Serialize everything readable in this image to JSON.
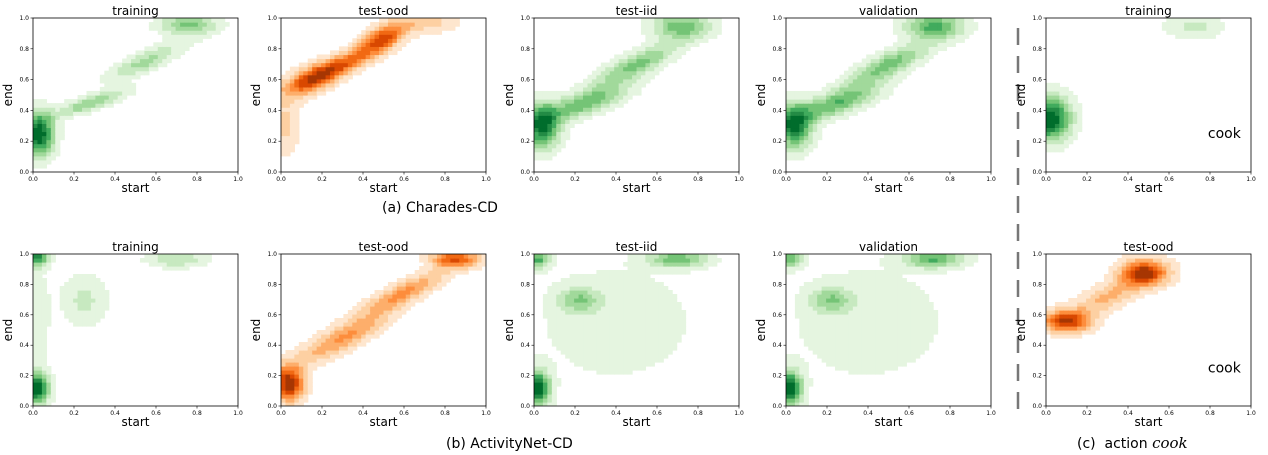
{
  "captions": {
    "a": "(a) Charades-CD",
    "b": "(b) ActivityNet-CD",
    "c_prefix": "(c)  action ",
    "c_action": "cook"
  },
  "colors": {
    "green_scale": [
      "#e5f5e0",
      "#c7e9c0",
      "#a1d99b",
      "#74c476",
      "#41ab5d",
      "#238b45",
      "#006d2c"
    ],
    "orange_scale": [
      "#fee6ce",
      "#fdd0a2",
      "#fdae6b",
      "#fd8d3c",
      "#f16913",
      "#d94801",
      "#a63603"
    ],
    "divider": "#777777"
  },
  "chart_data": [
    {
      "id": "a1",
      "type": "heatmap",
      "panel": "Charades-CD",
      "title": "training",
      "xlabel": "start",
      "ylabel": "end",
      "xlim": [
        0,
        1
      ],
      "ylim": [
        0,
        1
      ],
      "ticks": [
        "0.0",
        "0.2",
        "0.4",
        "0.6",
        "0.8",
        "1.0"
      ],
      "colormap": "green",
      "blobs": [
        {
          "x": 0.03,
          "y": 0.25,
          "sx": 0.05,
          "sy": 0.1,
          "w": 1.0
        },
        {
          "x": 0.28,
          "y": 0.45,
          "sx": 0.12,
          "sy": 0.06,
          "w": 0.45,
          "rho": 0.8
        },
        {
          "x": 0.55,
          "y": 0.72,
          "sx": 0.12,
          "sy": 0.08,
          "w": 0.4,
          "rho": 0.8
        },
        {
          "x": 0.76,
          "y": 0.96,
          "sx": 0.1,
          "sy": 0.05,
          "w": 0.5
        }
      ]
    },
    {
      "id": "a2",
      "type": "heatmap",
      "panel": "Charades-CD",
      "title": "test-ood",
      "xlabel": "start",
      "ylabel": "end",
      "xlim": [
        0,
        1
      ],
      "ylim": [
        0,
        1
      ],
      "ticks": [
        "0.0",
        "0.2",
        "0.4",
        "0.6",
        "0.8",
        "1.0"
      ],
      "colormap": "orange",
      "blobs": [
        {
          "x": 0.15,
          "y": 0.6,
          "sx": 0.1,
          "sy": 0.08,
          "w": 0.85,
          "rho": 0.6
        },
        {
          "x": 0.3,
          "y": 0.7,
          "sx": 0.14,
          "sy": 0.09,
          "w": 0.8,
          "rho": 0.85
        },
        {
          "x": 0.5,
          "y": 0.88,
          "sx": 0.08,
          "sy": 0.07,
          "w": 1.0,
          "rho": 0.6
        },
        {
          "x": 0.02,
          "y": 0.3,
          "sx": 0.05,
          "sy": 0.12,
          "w": 0.35
        },
        {
          "x": 0.72,
          "y": 0.98,
          "sx": 0.1,
          "sy": 0.05,
          "w": 0.35
        }
      ]
    },
    {
      "id": "a3",
      "type": "heatmap",
      "panel": "Charades-CD",
      "title": "test-iid",
      "xlabel": "start",
      "ylabel": "end",
      "xlim": [
        0,
        1
      ],
      "ylim": [
        0,
        1
      ],
      "ticks": [
        "0.0",
        "0.2",
        "0.4",
        "0.6",
        "0.8",
        "1.0"
      ],
      "colormap": "green",
      "blobs": [
        {
          "x": 0.04,
          "y": 0.3,
          "sx": 0.06,
          "sy": 0.1,
          "w": 0.95
        },
        {
          "x": 0.25,
          "y": 0.45,
          "sx": 0.14,
          "sy": 0.08,
          "w": 0.6,
          "rho": 0.7
        },
        {
          "x": 0.5,
          "y": 0.7,
          "sx": 0.14,
          "sy": 0.1,
          "w": 0.55,
          "rho": 0.8
        },
        {
          "x": 0.72,
          "y": 0.95,
          "sx": 0.1,
          "sy": 0.06,
          "w": 0.6
        }
      ]
    },
    {
      "id": "a4",
      "type": "heatmap",
      "panel": "Charades-CD",
      "title": "validation",
      "xlabel": "start",
      "ylabel": "end",
      "xlim": [
        0,
        1
      ],
      "ylim": [
        0,
        1
      ],
      "ticks": [
        "0.0",
        "0.2",
        "0.4",
        "0.6",
        "0.8",
        "1.0"
      ],
      "colormap": "green",
      "blobs": [
        {
          "x": 0.04,
          "y": 0.3,
          "sx": 0.06,
          "sy": 0.1,
          "w": 0.9
        },
        {
          "x": 0.25,
          "y": 0.45,
          "sx": 0.14,
          "sy": 0.08,
          "w": 0.6,
          "rho": 0.7
        },
        {
          "x": 0.5,
          "y": 0.7,
          "sx": 0.14,
          "sy": 0.1,
          "w": 0.55,
          "rho": 0.8
        },
        {
          "x": 0.72,
          "y": 0.95,
          "sx": 0.1,
          "sy": 0.06,
          "w": 0.65
        }
      ]
    },
    {
      "id": "b1",
      "type": "heatmap",
      "panel": "ActivityNet-CD",
      "title": "training",
      "xlabel": "start",
      "ylabel": "end",
      "xlim": [
        0,
        1
      ],
      "ylim": [
        0,
        1
      ],
      "ticks": [
        "0.0",
        "0.2",
        "0.4",
        "0.6",
        "0.8",
        "1.0"
      ],
      "colormap": "green",
      "blobs": [
        {
          "x": 0.02,
          "y": 0.12,
          "sx": 0.04,
          "sy": 0.07,
          "w": 1.0
        },
        {
          "x": 0.02,
          "y": 0.98,
          "sx": 0.04,
          "sy": 0.04,
          "w": 0.8
        },
        {
          "x": 0.25,
          "y": 0.7,
          "sx": 0.08,
          "sy": 0.12,
          "w": 0.25
        },
        {
          "x": 0.7,
          "y": 0.97,
          "sx": 0.1,
          "sy": 0.04,
          "w": 0.35
        },
        {
          "x": 0.02,
          "y": 0.55,
          "sx": 0.04,
          "sy": 0.25,
          "w": 0.2
        }
      ]
    },
    {
      "id": "b2",
      "type": "heatmap",
      "panel": "ActivityNet-CD",
      "title": "test-ood",
      "xlabel": "start",
      "ylabel": "end",
      "xlim": [
        0,
        1
      ],
      "ylim": [
        0,
        1
      ],
      "ticks": [
        "0.0",
        "0.2",
        "0.4",
        "0.6",
        "0.8",
        "1.0"
      ],
      "colormap": "orange",
      "blobs": [
        {
          "x": 0.04,
          "y": 0.15,
          "sx": 0.05,
          "sy": 0.08,
          "w": 1.0
        },
        {
          "x": 0.3,
          "y": 0.45,
          "sx": 0.16,
          "sy": 0.12,
          "w": 0.5,
          "rho": 0.85
        },
        {
          "x": 0.6,
          "y": 0.75,
          "sx": 0.14,
          "sy": 0.1,
          "w": 0.5,
          "rho": 0.85
        },
        {
          "x": 0.85,
          "y": 0.97,
          "sx": 0.08,
          "sy": 0.04,
          "w": 0.75
        }
      ]
    },
    {
      "id": "b3",
      "type": "heatmap",
      "panel": "ActivityNet-CD",
      "title": "test-iid",
      "xlabel": "start",
      "ylabel": "end",
      "xlim": [
        0,
        1
      ],
      "ylim": [
        0,
        1
      ],
      "ticks": [
        "0.0",
        "0.2",
        "0.4",
        "0.6",
        "0.8",
        "1.0"
      ],
      "colormap": "green",
      "blobs": [
        {
          "x": 0.02,
          "y": 0.12,
          "sx": 0.04,
          "sy": 0.08,
          "w": 1.0
        },
        {
          "x": 0.02,
          "y": 0.97,
          "sx": 0.04,
          "sy": 0.04,
          "w": 0.65
        },
        {
          "x": 0.22,
          "y": 0.7,
          "sx": 0.07,
          "sy": 0.06,
          "w": 0.4
        },
        {
          "x": 0.7,
          "y": 0.97,
          "sx": 0.1,
          "sy": 0.04,
          "w": 0.55
        },
        {
          "x": 0.4,
          "y": 0.55,
          "sx": 0.3,
          "sy": 0.3,
          "w": 0.15
        }
      ]
    },
    {
      "id": "b4",
      "type": "heatmap",
      "panel": "ActivityNet-CD",
      "title": "validation",
      "xlabel": "start",
      "ylabel": "end",
      "xlim": [
        0,
        1
      ],
      "ylim": [
        0,
        1
      ],
      "ticks": [
        "0.0",
        "0.2",
        "0.4",
        "0.6",
        "0.8",
        "1.0"
      ],
      "colormap": "green",
      "blobs": [
        {
          "x": 0.02,
          "y": 0.12,
          "sx": 0.04,
          "sy": 0.08,
          "w": 1.0
        },
        {
          "x": 0.02,
          "y": 0.97,
          "sx": 0.04,
          "sy": 0.04,
          "w": 0.6
        },
        {
          "x": 0.22,
          "y": 0.7,
          "sx": 0.07,
          "sy": 0.06,
          "w": 0.4
        },
        {
          "x": 0.72,
          "y": 0.97,
          "sx": 0.1,
          "sy": 0.04,
          "w": 0.6
        },
        {
          "x": 0.4,
          "y": 0.55,
          "sx": 0.3,
          "sy": 0.3,
          "w": 0.15
        }
      ]
    },
    {
      "id": "c1",
      "type": "heatmap",
      "panel": "action cook",
      "title": "training",
      "annotation": "cook",
      "xlabel": "start",
      "ylabel": "end",
      "xlim": [
        0,
        1
      ],
      "ylim": [
        0,
        1
      ],
      "ticks": [
        "0.0",
        "0.2",
        "0.4",
        "0.6",
        "0.8",
        "1.0"
      ],
      "colormap": "green",
      "blobs": [
        {
          "x": 0.02,
          "y": 0.35,
          "sx": 0.07,
          "sy": 0.1,
          "w": 1.0
        },
        {
          "x": 0.72,
          "y": 0.95,
          "sx": 0.1,
          "sy": 0.06,
          "w": 0.25
        }
      ]
    },
    {
      "id": "c2",
      "type": "heatmap",
      "panel": "action cook",
      "title": "test-ood",
      "annotation": "cook",
      "xlabel": "start",
      "ylabel": "end",
      "xlim": [
        0,
        1
      ],
      "ylim": [
        0,
        1
      ],
      "ticks": [
        "0.0",
        "0.2",
        "0.4",
        "0.6",
        "0.8",
        "1.0"
      ],
      "colormap": "orange",
      "blobs": [
        {
          "x": 0.1,
          "y": 0.56,
          "sx": 0.08,
          "sy": 0.05,
          "w": 0.95
        },
        {
          "x": 0.48,
          "y": 0.88,
          "sx": 0.08,
          "sy": 0.06,
          "w": 1.0
        },
        {
          "x": 0.3,
          "y": 0.72,
          "sx": 0.12,
          "sy": 0.09,
          "w": 0.4,
          "rho": 0.7
        }
      ]
    }
  ]
}
